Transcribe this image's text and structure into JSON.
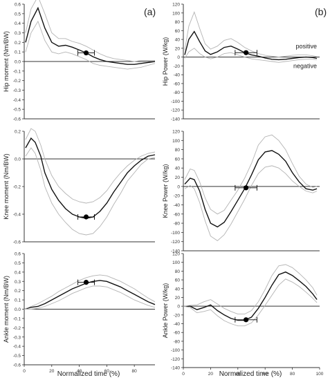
{
  "panel_labels": [
    "(a)",
    "(b)"
  ],
  "column_xlabels": [
    "Normalized time (%)",
    "Normalized time (%)"
  ],
  "colors": {
    "mean": "#111111",
    "band": "#b3b3b3",
    "marker": "#000000",
    "axis": "#333333"
  },
  "chart_data": [
    {
      "type": "line",
      "panel": "a",
      "ylabel": "Hip moment (Nm/BW)",
      "xlim": [
        0,
        95
      ],
      "ylim": [
        -0.6,
        0.6
      ],
      "yticks": [
        0.6,
        0.5,
        0.4,
        0.3,
        0.2,
        0.1,
        0.0,
        -0.1,
        -0.2,
        -0.3,
        -0.4,
        -0.5,
        -0.6
      ],
      "ytick_labels": [
        "0.6",
        "0.5",
        "0.4",
        "0.3",
        "0.2",
        "0.1",
        "0.0",
        "-0.1",
        "-0.2",
        "-0.3",
        "-0.4",
        "-0.5",
        "-0.6"
      ],
      "xticks": [],
      "xtick_labels": [],
      "series": [
        {
          "role": "mean",
          "x": [
            1,
            5,
            10,
            15,
            20,
            25,
            30,
            35,
            40,
            45,
            50,
            55,
            60,
            65,
            70,
            75,
            80,
            85,
            90,
            95
          ],
          "y": [
            0.2,
            0.42,
            0.56,
            0.35,
            0.2,
            0.16,
            0.17,
            0.15,
            0.12,
            0.09,
            0.05,
            0.02,
            0.0,
            -0.01,
            -0.02,
            -0.03,
            -0.03,
            -0.02,
            -0.01,
            0.0
          ]
        },
        {
          "role": "upper",
          "x": [
            1,
            5,
            10,
            15,
            20,
            25,
            30,
            35,
            40,
            45,
            50,
            55,
            60,
            65,
            70,
            75,
            80,
            85,
            90,
            95
          ],
          "y": [
            0.3,
            0.55,
            0.68,
            0.5,
            0.3,
            0.24,
            0.24,
            0.21,
            0.19,
            0.16,
            0.12,
            0.08,
            0.05,
            0.03,
            0.02,
            0.01,
            0.0,
            0.01,
            0.01,
            0.01
          ]
        },
        {
          "role": "lower",
          "x": [
            1,
            5,
            10,
            15,
            20,
            25,
            30,
            35,
            40,
            45,
            50,
            55,
            60,
            65,
            70,
            75,
            80,
            85,
            90,
            95
          ],
          "y": [
            0.1,
            0.3,
            0.42,
            0.22,
            0.1,
            0.08,
            0.1,
            0.08,
            0.05,
            0.02,
            -0.02,
            -0.04,
            -0.05,
            -0.06,
            -0.07,
            -0.08,
            -0.07,
            -0.06,
            -0.04,
            -0.02
          ]
        }
      ],
      "marker": {
        "x": 45,
        "y": 0.09,
        "xerr": 6
      }
    },
    {
      "type": "line",
      "panel": "a",
      "ylabel": "Knee moment (Nm/BW)",
      "xlim": [
        0,
        95
      ],
      "ylim": [
        -0.6,
        0.2
      ],
      "yticks": [
        0.2,
        0.0,
        -0.2,
        -0.4,
        -0.6
      ],
      "ytick_labels": [
        "0.2",
        "0.0",
        "-0.2",
        "-0.4",
        "-0.6"
      ],
      "xticks": [],
      "xtick_labels": [],
      "series": [
        {
          "role": "mean",
          "x": [
            1,
            5,
            8,
            12,
            15,
            20,
            25,
            30,
            35,
            40,
            45,
            50,
            55,
            60,
            65,
            70,
            75,
            80,
            85,
            90,
            95
          ],
          "y": [
            0.08,
            0.15,
            0.12,
            0.02,
            -0.1,
            -0.22,
            -0.3,
            -0.36,
            -0.4,
            -0.42,
            -0.43,
            -0.42,
            -0.38,
            -0.32,
            -0.24,
            -0.17,
            -0.1,
            -0.05,
            -0.01,
            0.02,
            0.03
          ]
        },
        {
          "role": "upper",
          "x": [
            1,
            5,
            8,
            12,
            15,
            20,
            25,
            30,
            35,
            40,
            45,
            50,
            55,
            60,
            65,
            70,
            75,
            80,
            85,
            90,
            95
          ],
          "y": [
            0.14,
            0.22,
            0.2,
            0.1,
            0.0,
            -0.12,
            -0.2,
            -0.25,
            -0.29,
            -0.31,
            -0.32,
            -0.31,
            -0.28,
            -0.23,
            -0.16,
            -0.1,
            -0.05,
            -0.01,
            0.02,
            0.04,
            0.05
          ]
        },
        {
          "role": "lower",
          "x": [
            1,
            5,
            8,
            12,
            15,
            20,
            25,
            30,
            35,
            40,
            45,
            50,
            55,
            60,
            65,
            70,
            75,
            80,
            85,
            90,
            95
          ],
          "y": [
            0.02,
            0.08,
            0.04,
            -0.08,
            -0.2,
            -0.32,
            -0.4,
            -0.46,
            -0.51,
            -0.54,
            -0.55,
            -0.54,
            -0.49,
            -0.42,
            -0.33,
            -0.25,
            -0.16,
            -0.1,
            -0.04,
            0.0,
            0.01
          ]
        }
      ],
      "marker": {
        "x": 45,
        "y": -0.42,
        "xerr": 6
      }
    },
    {
      "type": "line",
      "panel": "a",
      "ylabel": "Ankle moment (Nm/BW)",
      "xlim": [
        0,
        95
      ],
      "ylim": [
        -0.6,
        0.6
      ],
      "yticks": [
        0.6,
        0.5,
        0.4,
        0.3,
        0.2,
        0.1,
        0.0,
        -0.1,
        -0.2,
        -0.3,
        -0.4,
        -0.5,
        -0.6
      ],
      "ytick_labels": [
        "0.6",
        "0.5",
        "0.4",
        "0.3",
        "0.2",
        "0.1",
        "0.0",
        "-0.1",
        "-0.2",
        "-0.3",
        "-0.4",
        "-0.5",
        "-0.6"
      ],
      "xticks": [
        0,
        20,
        40,
        60,
        80
      ],
      "xtick_labels": [
        "0",
        "20",
        "40",
        "60",
        "80"
      ],
      "series": [
        {
          "role": "mean",
          "x": [
            0,
            5,
            10,
            15,
            20,
            25,
            30,
            35,
            40,
            45,
            50,
            55,
            60,
            65,
            70,
            75,
            80,
            85,
            90,
            95
          ],
          "y": [
            0.0,
            0.02,
            0.03,
            0.06,
            0.1,
            0.14,
            0.18,
            0.22,
            0.25,
            0.28,
            0.3,
            0.31,
            0.3,
            0.27,
            0.24,
            0.2,
            0.16,
            0.12,
            0.08,
            0.05
          ]
        },
        {
          "role": "upper",
          "x": [
            0,
            5,
            10,
            15,
            20,
            25,
            30,
            35,
            40,
            45,
            50,
            55,
            60,
            65,
            70,
            75,
            80,
            85,
            90,
            95
          ],
          "y": [
            0.0,
            0.03,
            0.06,
            0.1,
            0.14,
            0.19,
            0.23,
            0.27,
            0.31,
            0.34,
            0.36,
            0.37,
            0.36,
            0.33,
            0.3,
            0.26,
            0.22,
            0.17,
            0.12,
            0.08
          ]
        },
        {
          "role": "lower",
          "x": [
            0,
            5,
            10,
            15,
            20,
            25,
            30,
            35,
            40,
            45,
            50,
            55,
            60,
            65,
            70,
            75,
            80,
            85,
            90,
            95
          ],
          "y": [
            0.0,
            0.0,
            0.01,
            0.03,
            0.06,
            0.09,
            0.13,
            0.17,
            0.2,
            0.23,
            0.25,
            0.25,
            0.24,
            0.21,
            0.18,
            0.14,
            0.1,
            0.07,
            0.04,
            0.02
          ]
        }
      ],
      "marker": {
        "x": 45,
        "y": 0.29,
        "xerr": 6
      }
    },
    {
      "type": "line",
      "panel": "b",
      "ylabel": "Hip Power (W/kg)",
      "xlim": [
        0,
        100
      ],
      "ylim": [
        -140,
        120
      ],
      "yticks": [
        120,
        100,
        80,
        60,
        40,
        20,
        0,
        -20,
        -40,
        -60,
        -80,
        -100,
        -120,
        -140
      ],
      "ytick_labels": [
        "120",
        "100",
        "80",
        "60",
        "40",
        "20",
        "0",
        "-20",
        "-40",
        "-60",
        "-80",
        "-100",
        "-120",
        "-140"
      ],
      "xticks": [],
      "xtick_labels": [],
      "annotations": [
        "positive",
        "negative"
      ],
      "series": [
        {
          "role": "mean",
          "x": [
            1,
            4,
            8,
            12,
            16,
            20,
            25,
            30,
            35,
            40,
            45,
            50,
            55,
            60,
            65,
            70,
            75,
            80,
            85,
            90,
            95,
            98
          ],
          "y": [
            5,
            40,
            58,
            35,
            14,
            6,
            12,
            22,
            25,
            18,
            10,
            5,
            2,
            -2,
            -5,
            -6,
            -5,
            -3,
            -1,
            0,
            -1,
            -3
          ]
        },
        {
          "role": "upper",
          "x": [
            1,
            4,
            8,
            12,
            16,
            20,
            25,
            30,
            35,
            40,
            45,
            50,
            55,
            60,
            65,
            70,
            75,
            80,
            85,
            90,
            95,
            98
          ],
          "y": [
            15,
            70,
            102,
            65,
            30,
            18,
            25,
            38,
            42,
            33,
            22,
            14,
            8,
            4,
            2,
            0,
            2,
            4,
            5,
            5,
            3,
            1
          ]
        },
        {
          "role": "lower",
          "x": [
            1,
            4,
            8,
            12,
            16,
            20,
            25,
            30,
            35,
            40,
            45,
            50,
            55,
            60,
            65,
            70,
            75,
            80,
            85,
            90,
            95,
            98
          ],
          "y": [
            -3,
            12,
            20,
            8,
            0,
            -4,
            0,
            8,
            10,
            5,
            0,
            -4,
            -6,
            -8,
            -10,
            -12,
            -10,
            -8,
            -6,
            -5,
            -5,
            -6
          ]
        }
      ],
      "marker": {
        "x": 46,
        "y": 10,
        "xerr": 8
      }
    },
    {
      "type": "line",
      "panel": "b",
      "ylabel": "Knee Power (W/kg)",
      "xlim": [
        0,
        100
      ],
      "ylim": [
        -140,
        120
      ],
      "yticks": [
        120,
        100,
        80,
        60,
        40,
        20,
        0,
        -20,
        -40,
        -60,
        -80,
        -100,
        -120,
        -140
      ],
      "ytick_labels": [
        "120",
        "100",
        "80",
        "60",
        "40",
        "20",
        "0",
        "-20",
        "-40",
        "-60",
        "-80",
        "-100",
        "-120",
        "-140"
      ],
      "xticks": [],
      "xtick_labels": [],
      "series": [
        {
          "role": "mean",
          "x": [
            1,
            5,
            8,
            12,
            16,
            20,
            25,
            30,
            35,
            40,
            45,
            50,
            55,
            60,
            65,
            70,
            75,
            80,
            85,
            90,
            95,
            98
          ],
          "y": [
            5,
            18,
            15,
            -10,
            -50,
            -80,
            -88,
            -78,
            -55,
            -30,
            -5,
            25,
            58,
            75,
            78,
            70,
            55,
            30,
            10,
            -5,
            -8,
            -5
          ]
        },
        {
          "role": "upper",
          "x": [
            1,
            5,
            8,
            12,
            16,
            20,
            25,
            30,
            35,
            40,
            45,
            50,
            55,
            60,
            65,
            70,
            75,
            80,
            85,
            90,
            95,
            98
          ],
          "y": [
            15,
            38,
            35,
            10,
            -25,
            -50,
            -60,
            -52,
            -30,
            -8,
            18,
            50,
            90,
            108,
            112,
            100,
            80,
            50,
            22,
            5,
            -2,
            0
          ]
        },
        {
          "role": "lower",
          "x": [
            1,
            5,
            8,
            12,
            16,
            20,
            25,
            30,
            35,
            40,
            45,
            50,
            55,
            60,
            65,
            70,
            75,
            80,
            85,
            90,
            95,
            98
          ],
          "y": [
            -5,
            2,
            -5,
            -35,
            -75,
            -108,
            -118,
            -105,
            -82,
            -55,
            -28,
            2,
            28,
            42,
            45,
            40,
            28,
            12,
            0,
            -10,
            -14,
            -10
          ]
        }
      ],
      "marker": {
        "x": 46,
        "y": -3,
        "xerr": 8
      }
    },
    {
      "type": "line",
      "panel": "b",
      "ylabel": "Ankle Power (W/kg)",
      "xlim": [
        0,
        100
      ],
      "ylim": [
        -140,
        120
      ],
      "yticks": [
        120,
        100,
        80,
        60,
        40,
        20,
        0,
        -20,
        -40,
        -60,
        -80,
        -100,
        -120,
        -140
      ],
      "ytick_labels": [
        "120",
        "100",
        "80",
        "60",
        "40",
        "20",
        "0",
        "-20",
        "-40",
        "-60",
        "-80",
        "-100",
        "-120",
        "-140"
      ],
      "xticks": [
        0,
        20,
        40,
        60,
        80,
        100
      ],
      "xtick_labels": [
        "0",
        "20",
        "40",
        "60",
        "80",
        "100"
      ],
      "series": [
        {
          "role": "mean",
          "x": [
            0,
            5,
            10,
            15,
            20,
            25,
            30,
            35,
            40,
            45,
            50,
            55,
            60,
            65,
            70,
            75,
            80,
            85,
            90,
            95,
            98
          ],
          "y": [
            0,
            0,
            -8,
            -3,
            3,
            -10,
            -20,
            -28,
            -32,
            -32,
            -25,
            -5,
            20,
            48,
            72,
            78,
            70,
            58,
            45,
            28,
            15
          ]
        },
        {
          "role": "upper",
          "x": [
            0,
            5,
            10,
            15,
            20,
            25,
            30,
            35,
            40,
            45,
            50,
            55,
            60,
            65,
            70,
            75,
            80,
            85,
            90,
            95,
            98
          ],
          "y": [
            0,
            2,
            3,
            10,
            15,
            5,
            -5,
            -12,
            -18,
            -18,
            -10,
            10,
            38,
            70,
            92,
            95,
            88,
            75,
            60,
            42,
            25
          ]
        },
        {
          "role": "lower",
          "x": [
            0,
            5,
            10,
            15,
            20,
            25,
            30,
            35,
            40,
            45,
            50,
            55,
            60,
            65,
            70,
            75,
            80,
            85,
            90,
            95,
            98
          ],
          "y": [
            0,
            -3,
            -15,
            -12,
            -8,
            -22,
            -33,
            -40,
            -45,
            -45,
            -38,
            -20,
            2,
            25,
            48,
            62,
            55,
            45,
            32,
            18,
            8
          ]
        }
      ],
      "marker": {
        "x": 46,
        "y": -31,
        "xerr": 8
      }
    }
  ]
}
